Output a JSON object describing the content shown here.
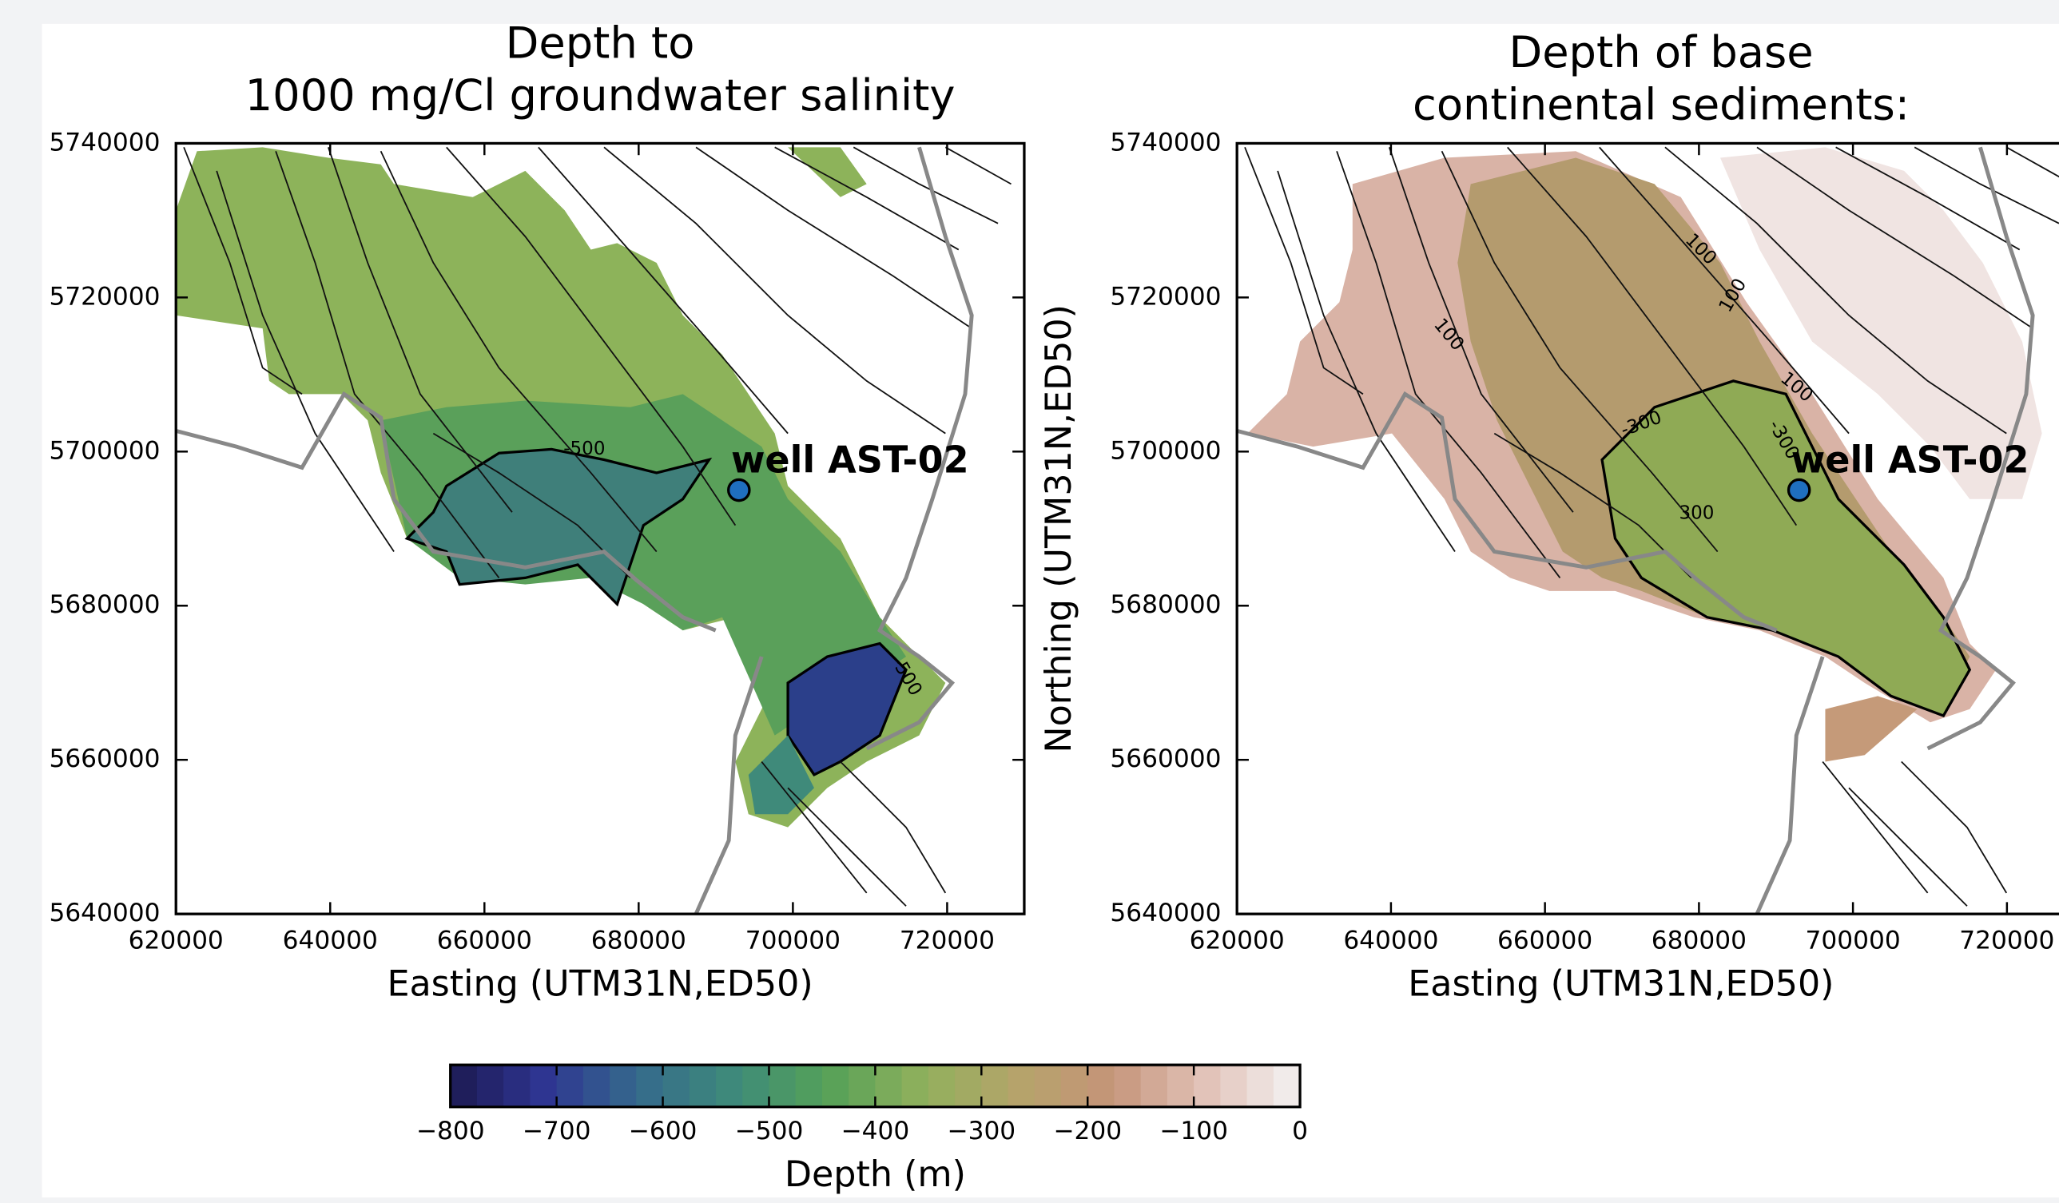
{
  "chart_data": [
    {
      "type": "map",
      "title": [
        "Depth to",
        "1000 mg/Cl groundwater salinity"
      ],
      "xlabel": "Easting (UTM31N,ED50)",
      "xlim": [
        620000,
        730000
      ],
      "ylim": [
        5640000,
        5740000
      ],
      "xticks": [
        620000,
        640000,
        660000,
        680000,
        700000,
        720000
      ],
      "yticks": [
        5640000,
        5660000,
        5680000,
        5700000,
        5720000,
        5740000
      ],
      "points": [
        {
          "label": "well AST-02",
          "x": 693000,
          "y": 5695000,
          "color": "#1f6fbf"
        }
      ],
      "contour_labels": [
        "-500",
        "-500"
      ]
    },
    {
      "type": "map",
      "title": [
        "Depth of base",
        "continental sediments:"
      ],
      "xlabel": "Easting (UTM31N,ED50)",
      "ylabel": "Northing (UTM31N,ED50)",
      "xlim": [
        620000,
        730000
      ],
      "ylim": [
        5640000,
        5740000
      ],
      "xticks": [
        620000,
        640000,
        660000,
        680000,
        700000,
        720000
      ],
      "yticks": [
        5640000,
        5660000,
        5680000,
        5700000,
        5720000,
        5740000
      ],
      "points": [
        {
          "label": "well AST-02",
          "x": 693000,
          "y": 5695000,
          "color": "#1f6fbf"
        }
      ],
      "contour_labels": [
        "100",
        "100",
        "100",
        "100",
        "-300",
        "-300",
        "300"
      ]
    },
    {
      "type": "colorbar",
      "xlabel": "Depth (m)",
      "xlim": [
        -800,
        0
      ],
      "xticks": [
        {
          "value": -800,
          "label": "−800"
        },
        {
          "value": -700,
          "label": "−700"
        },
        {
          "value": -600,
          "label": "−600"
        },
        {
          "value": -500,
          "label": "−500"
        },
        {
          "value": -400,
          "label": "−400"
        },
        {
          "value": -300,
          "label": "−300"
        },
        {
          "value": -200,
          "label": "−200"
        },
        {
          "value": -100,
          "label": "−100"
        },
        0
      ],
      "levels": 32,
      "colors": [
        "#1c1a52",
        "#2e3592",
        "#356a8c",
        "#3e8b7a",
        "#55a158",
        "#90b05c",
        "#b5a46a",
        "#c59479",
        "#e2c2b8",
        "#f4f2f2"
      ]
    }
  ]
}
